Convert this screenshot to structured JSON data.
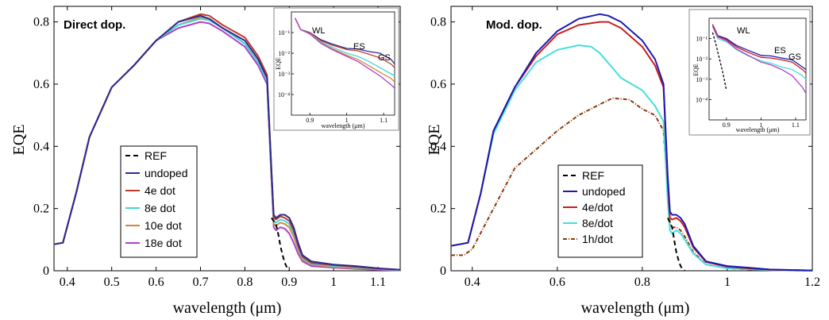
{
  "chart_data": [
    {
      "type": "line",
      "title": "Direct dop.",
      "xlabel": "wavelength (μm)",
      "ylabel": "EQE",
      "xlim": [
        0.37,
        1.15
      ],
      "ylim": [
        0,
        0.85
      ],
      "xticks": [
        "0.4",
        "0.5",
        "0.6",
        "0.7",
        "0.8",
        "0.9",
        "1",
        "1.1"
      ],
      "yticks": [
        "0",
        "0.2",
        "0.4",
        "0.6",
        "0.8"
      ],
      "legend_position": "bottom-left",
      "series": [
        {
          "name": "REF",
          "color": "#000000",
          "dash": "6,4",
          "x": [
            0.86,
            0.87,
            0.875,
            0.88,
            0.885,
            0.89,
            0.895,
            0.9
          ],
          "y": [
            0.17,
            0.15,
            0.12,
            0.08,
            0.05,
            0.025,
            0.01,
            0.0
          ]
        },
        {
          "name": "undoped",
          "color": "#2b2b8f",
          "dash": "",
          "x": [
            0.37,
            0.39,
            0.42,
            0.45,
            0.5,
            0.55,
            0.6,
            0.65,
            0.7,
            0.72,
            0.75,
            0.8,
            0.83,
            0.85,
            0.86,
            0.865,
            0.87,
            0.88,
            0.89,
            0.9,
            0.91,
            0.92,
            0.93,
            0.95,
            1.0,
            1.05,
            1.1,
            1.15
          ],
          "y": [
            0.085,
            0.09,
            0.25,
            0.43,
            0.59,
            0.66,
            0.74,
            0.8,
            0.82,
            0.81,
            0.78,
            0.74,
            0.68,
            0.62,
            0.32,
            0.18,
            0.17,
            0.18,
            0.18,
            0.17,
            0.14,
            0.09,
            0.05,
            0.03,
            0.02,
            0.015,
            0.008,
            0.003
          ]
        },
        {
          "name": "4e dot",
          "color": "#c0392b",
          "dash": "",
          "x": [
            0.37,
            0.39,
            0.42,
            0.45,
            0.5,
            0.55,
            0.6,
            0.65,
            0.7,
            0.72,
            0.75,
            0.8,
            0.83,
            0.85,
            0.86,
            0.865,
            0.87,
            0.88,
            0.89,
            0.9,
            0.91,
            0.92,
            0.93,
            0.95,
            1.0,
            1.05,
            1.1,
            1.15
          ],
          "y": [
            0.085,
            0.09,
            0.25,
            0.43,
            0.59,
            0.66,
            0.74,
            0.8,
            0.825,
            0.82,
            0.79,
            0.75,
            0.69,
            0.63,
            0.32,
            0.17,
            0.165,
            0.175,
            0.17,
            0.16,
            0.13,
            0.08,
            0.045,
            0.025,
            0.018,
            0.012,
            0.007,
            0.003
          ]
        },
        {
          "name": "8e dot",
          "color": "#45d6d6",
          "dash": "",
          "x": [
            0.37,
            0.39,
            0.42,
            0.45,
            0.5,
            0.55,
            0.6,
            0.65,
            0.7,
            0.72,
            0.75,
            0.8,
            0.83,
            0.85,
            0.86,
            0.865,
            0.87,
            0.88,
            0.89,
            0.9,
            0.91,
            0.92,
            0.93,
            0.95,
            1.0,
            1.05,
            1.1,
            1.15
          ],
          "y": [
            0.085,
            0.09,
            0.25,
            0.43,
            0.59,
            0.66,
            0.74,
            0.79,
            0.81,
            0.805,
            0.78,
            0.73,
            0.67,
            0.61,
            0.31,
            0.16,
            0.155,
            0.165,
            0.16,
            0.15,
            0.12,
            0.075,
            0.04,
            0.022,
            0.015,
            0.01,
            0.006,
            0.002
          ]
        },
        {
          "name": "10e dot",
          "color": "#d08840",
          "dash": "",
          "x": [
            0.37,
            0.39,
            0.42,
            0.45,
            0.5,
            0.55,
            0.6,
            0.65,
            0.7,
            0.72,
            0.75,
            0.8,
            0.83,
            0.85,
            0.86,
            0.865,
            0.87,
            0.88,
            0.89,
            0.9,
            0.91,
            0.92,
            0.93,
            0.95,
            1.0,
            1.05,
            1.1,
            1.15
          ],
          "y": [
            0.085,
            0.09,
            0.25,
            0.43,
            0.59,
            0.66,
            0.74,
            0.79,
            0.815,
            0.81,
            0.78,
            0.73,
            0.67,
            0.61,
            0.3,
            0.15,
            0.145,
            0.155,
            0.15,
            0.14,
            0.11,
            0.07,
            0.035,
            0.02,
            0.012,
            0.008,
            0.005,
            0.002
          ]
        },
        {
          "name": "18e dot",
          "color": "#b23fc8",
          "dash": "",
          "x": [
            0.37,
            0.39,
            0.42,
            0.45,
            0.5,
            0.55,
            0.6,
            0.65,
            0.7,
            0.72,
            0.75,
            0.8,
            0.83,
            0.85,
            0.86,
            0.865,
            0.87,
            0.88,
            0.89,
            0.9,
            0.91,
            0.92,
            0.93,
            0.95,
            1.0,
            1.05,
            1.1,
            1.15
          ],
          "y": [
            0.085,
            0.09,
            0.25,
            0.43,
            0.59,
            0.66,
            0.74,
            0.78,
            0.8,
            0.795,
            0.77,
            0.72,
            0.66,
            0.6,
            0.29,
            0.14,
            0.13,
            0.14,
            0.135,
            0.12,
            0.09,
            0.055,
            0.03,
            0.015,
            0.01,
            0.006,
            0.003,
            0.001
          ]
        }
      ],
      "inset": {
        "xlabel": "wavelength (μm)",
        "ylabel": "EQE",
        "yscale": "log",
        "xlim": [
          0.85,
          1.13
        ],
        "ylim": [
          1e-05,
          1
        ],
        "xticks": [
          "0.9",
          "1",
          "1.1"
        ],
        "yticks": [
          "10⁻¹",
          "10⁻²",
          "10⁻³",
          "10⁻⁴"
        ],
        "annotations": [
          "WL",
          "ES",
          "GS"
        ],
        "series": [
          {
            "name": "undoped",
            "color": "#2b2b8f",
            "x": [
              0.86,
              0.875,
              0.9,
              0.93,
              0.96,
              1.0,
              1.03,
              1.06,
              1.09,
              1.12,
              1.13
            ],
            "y": [
              0.5,
              0.14,
              0.1,
              0.045,
              0.028,
              0.017,
              0.016,
              0.012,
              0.01,
              0.005,
              0.003
            ]
          },
          {
            "name": "4e dot",
            "color": "#c0392b",
            "x": [
              0.86,
              0.875,
              0.9,
              0.93,
              0.96,
              1.0,
              1.03,
              1.06,
              1.09,
              1.12,
              1.13
            ],
            "y": [
              0.5,
              0.14,
              0.095,
              0.04,
              0.025,
              0.015,
              0.013,
              0.009,
              0.006,
              0.003,
              0.002
            ]
          },
          {
            "name": "8e dot",
            "color": "#45d6d6",
            "x": [
              0.86,
              0.875,
              0.9,
              0.93,
              0.96,
              1.0,
              1.03,
              1.06,
              1.09,
              1.12,
              1.13
            ],
            "y": [
              0.5,
              0.14,
              0.09,
              0.035,
              0.02,
              0.01,
              0.007,
              0.004,
              0.002,
              0.001,
              0.0008
            ]
          },
          {
            "name": "10e dot",
            "color": "#d08840",
            "x": [
              0.86,
              0.875,
              0.9,
              0.93,
              0.96,
              1.0,
              1.03,
              1.06,
              1.09,
              1.12,
              1.13
            ],
            "y": [
              0.5,
              0.14,
              0.088,
              0.032,
              0.017,
              0.008,
              0.005,
              0.0025,
              0.0012,
              0.0006,
              0.0004
            ]
          },
          {
            "name": "18e dot",
            "color": "#b23fc8",
            "x": [
              0.86,
              0.875,
              0.9,
              0.93,
              0.96,
              1.0,
              1.03,
              1.06,
              1.09,
              1.12,
              1.13
            ],
            "y": [
              0.5,
              0.14,
              0.085,
              0.03,
              0.015,
              0.007,
              0.004,
              0.0018,
              0.0008,
              0.0003,
              0.0002
            ]
          }
        ]
      }
    },
    {
      "type": "line",
      "title": "Mod. dop.",
      "xlabel": "wavelength (μm)",
      "ylabel": "EQE",
      "xlim": [
        0.35,
        1.2
      ],
      "ylim": [
        0,
        0.85
      ],
      "xticks": [
        "0.4",
        "0.6",
        "0.8",
        "1",
        "1.2"
      ],
      "yticks": [
        "0",
        "0.2",
        "0.4",
        "0.6",
        "0.8"
      ],
      "legend_position": "bottom-left",
      "series": [
        {
          "name": "REF",
          "color": "#000000",
          "dash": "6,4",
          "x": [
            0.86,
            0.87,
            0.875,
            0.88,
            0.885,
            0.89,
            0.895,
            0.9
          ],
          "y": [
            0.17,
            0.14,
            0.1,
            0.06,
            0.035,
            0.015,
            0.005,
            0.0
          ]
        },
        {
          "name": "undoped",
          "color": "#1a1ab0",
          "dash": "",
          "x": [
            0.35,
            0.39,
            0.42,
            0.45,
            0.5,
            0.55,
            0.6,
            0.65,
            0.7,
            0.72,
            0.75,
            0.8,
            0.83,
            0.85,
            0.86,
            0.865,
            0.87,
            0.88,
            0.89,
            0.9,
            0.92,
            0.95,
            1.0,
            1.05,
            1.1,
            1.2
          ],
          "y": [
            0.08,
            0.09,
            0.25,
            0.45,
            0.59,
            0.7,
            0.77,
            0.81,
            0.825,
            0.82,
            0.8,
            0.74,
            0.68,
            0.6,
            0.3,
            0.19,
            0.18,
            0.18,
            0.17,
            0.15,
            0.08,
            0.03,
            0.015,
            0.01,
            0.004,
            0.001
          ]
        },
        {
          "name": "4e/dot",
          "color": "#c81e1e",
          "dash": "",
          "x": [
            0.35,
            0.39,
            0.42,
            0.45,
            0.5,
            0.55,
            0.6,
            0.65,
            0.7,
            0.72,
            0.75,
            0.8,
            0.83,
            0.85,
            0.86,
            0.865,
            0.87,
            0.88,
            0.89,
            0.9,
            0.92,
            0.95,
            1.0,
            1.05,
            1.1,
            1.2
          ],
          "y": [
            0.08,
            0.09,
            0.25,
            0.45,
            0.59,
            0.69,
            0.76,
            0.79,
            0.8,
            0.8,
            0.78,
            0.72,
            0.66,
            0.59,
            0.28,
            0.17,
            0.165,
            0.17,
            0.16,
            0.14,
            0.075,
            0.028,
            0.013,
            0.008,
            0.003,
            0.001
          ]
        },
        {
          "name": "8e/dot",
          "color": "#45dede",
          "dash": "",
          "x": [
            0.35,
            0.39,
            0.42,
            0.45,
            0.5,
            0.55,
            0.6,
            0.65,
            0.68,
            0.7,
            0.75,
            0.8,
            0.83,
            0.85,
            0.86,
            0.865,
            0.87,
            0.88,
            0.89,
            0.9,
            0.92,
            0.95,
            1.0,
            1.05,
            1.1,
            1.2
          ],
          "y": [
            0.08,
            0.09,
            0.25,
            0.44,
            0.58,
            0.67,
            0.71,
            0.725,
            0.72,
            0.7,
            0.62,
            0.58,
            0.53,
            0.48,
            0.22,
            0.13,
            0.12,
            0.13,
            0.12,
            0.1,
            0.055,
            0.02,
            0.008,
            0.005,
            0.002,
            0.0
          ]
        },
        {
          "name": "1h/dot",
          "color": "#8b3a0f",
          "dash": "5,2,1,2",
          "x": [
            0.35,
            0.38,
            0.4,
            0.45,
            0.5,
            0.55,
            0.6,
            0.65,
            0.7,
            0.73,
            0.77,
            0.8,
            0.83,
            0.85,
            0.86,
            0.865,
            0.87,
            0.88,
            0.89,
            0.9,
            0.92,
            0.95,
            1.0,
            1.05,
            1.1,
            1.2
          ],
          "y": [
            0.05,
            0.05,
            0.07,
            0.2,
            0.33,
            0.39,
            0.45,
            0.5,
            0.535,
            0.555,
            0.55,
            0.52,
            0.5,
            0.45,
            0.25,
            0.15,
            0.14,
            0.14,
            0.13,
            0.11,
            0.06,
            0.02,
            0.008,
            0.004,
            0.002,
            0.0
          ]
        }
      ],
      "inset": {
        "xlabel": "wavelength (μm)",
        "ylabel": "EQE",
        "yscale": "log",
        "xlim": [
          0.85,
          1.13
        ],
        "ylim": [
          1e-05,
          1
        ],
        "xticks": [
          "0.9",
          "1",
          "1.1"
        ],
        "yticks": [
          "10⁻¹",
          "10⁻²",
          "10⁻³",
          "10⁻⁴"
        ],
        "annotations": [
          "WL",
          "ES",
          "GS"
        ],
        "series": [
          {
            "name": "undoped",
            "color": "#1a1ab0",
            "x": [
              0.86,
              0.875,
              0.9,
              0.93,
              0.96,
              1.0,
              1.03,
              1.06,
              1.09,
              1.12,
              1.13
            ],
            "y": [
              0.5,
              0.14,
              0.1,
              0.045,
              0.028,
              0.015,
              0.014,
              0.011,
              0.009,
              0.004,
              0.003
            ]
          },
          {
            "name": "4e/dot",
            "color": "#c81e1e",
            "x": [
              0.86,
              0.875,
              0.9,
              0.93,
              0.96,
              1.0,
              1.03,
              1.06,
              1.09,
              1.12,
              1.13
            ],
            "y": [
              0.5,
              0.13,
              0.09,
              0.038,
              0.022,
              0.012,
              0.011,
              0.009,
              0.007,
              0.003,
              0.002
            ]
          },
          {
            "name": "8e/dot",
            "color": "#45dede",
            "x": [
              0.86,
              0.875,
              0.9,
              0.93,
              0.96,
              1.0,
              1.03,
              1.06,
              1.09,
              1.12,
              1.13
            ],
            "y": [
              0.4,
              0.1,
              0.07,
              0.028,
              0.015,
              0.008,
              0.006,
              0.004,
              0.003,
              0.0015,
              0.001
            ]
          },
          {
            "name": "1h/dot",
            "color": "#b23fc8",
            "x": [
              0.86,
              0.875,
              0.9,
              0.93,
              0.96,
              1.0,
              1.03,
              1.06,
              1.09,
              1.12,
              1.13
            ],
            "y": [
              0.4,
              0.12,
              0.08,
              0.03,
              0.016,
              0.007,
              0.005,
              0.003,
              0.0015,
              0.0004,
              0.0002
            ]
          },
          {
            "name": "REF",
            "color": "#000000",
            "dash": "3,2",
            "x": [
              0.86,
              0.87,
              0.88,
              0.89,
              0.9
            ],
            "y": [
              0.2,
              0.05,
              0.01,
              0.002,
              0.0003
            ]
          }
        ]
      }
    }
  ]
}
